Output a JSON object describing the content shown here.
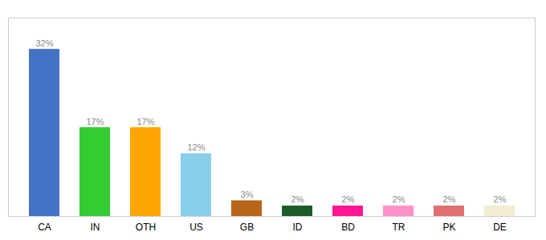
{
  "chart_data": {
    "type": "bar",
    "categories": [
      "CA",
      "IN",
      "OTH",
      "US",
      "GB",
      "ID",
      "BD",
      "TR",
      "PK",
      "DE"
    ],
    "values": [
      32,
      17,
      17,
      12,
      3,
      2,
      2,
      2,
      2,
      2
    ],
    "value_labels": [
      "32%",
      "17%",
      "17%",
      "12%",
      "3%",
      "2%",
      "2%",
      "2%",
      "2%",
      "2%"
    ],
    "colors": [
      "#4472C4",
      "#33CC33",
      "#FFA500",
      "#87CEEB",
      "#B8651A",
      "#1A5C2A",
      "#FF1493",
      "#FF91C8",
      "#E07070",
      "#F0EDD0"
    ],
    "ylim": [
      0,
      38
    ],
    "data_labels": true,
    "tick_labels": "x",
    "grid": false
  }
}
